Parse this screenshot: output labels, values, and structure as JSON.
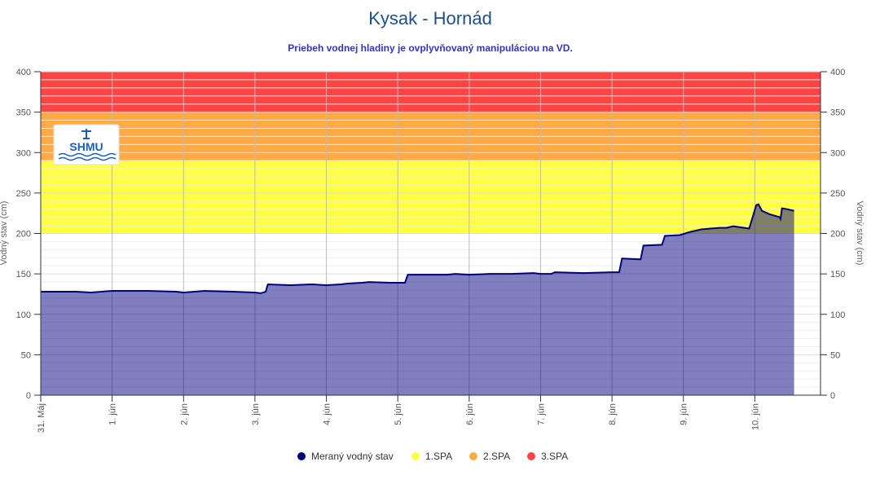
{
  "chart_data": {
    "type": "area",
    "title": "Kysak - Hornád",
    "subtitle": "Priebeh vodnej hladiny je ovplyvňovaný manipuláciou na VD.",
    "ylabel": "Vodný stav (cm)",
    "ylabel_right": "Vodný stav (cm)",
    "ylim": [
      0,
      400
    ],
    "yticks": [
      0,
      50,
      100,
      150,
      200,
      250,
      300,
      350,
      400
    ],
    "xlim_days": [
      0,
      10.92
    ],
    "xtick_labels": [
      "31. Máj",
      "1. jún",
      "2. jún",
      "3. jún",
      "4. jún",
      "5. jún",
      "6. jún",
      "7. jún",
      "8. jún",
      "9. jún",
      "10. jún"
    ],
    "bands": [
      {
        "name": "1.SPA",
        "from": 200,
        "to": 290,
        "color": "#ffff44"
      },
      {
        "name": "2.SPA",
        "from": 290,
        "to": 350,
        "color": "#ffaa44"
      },
      {
        "name": "3.SPA",
        "from": 350,
        "to": 400,
        "color": "#ff4444"
      }
    ],
    "series": [
      {
        "name": "Meraný vodný stav",
        "color": "#000080",
        "fill": "rgba(0,0,128,0.5)",
        "points_day_cm": [
          [
            0,
            128
          ],
          [
            0.5,
            128
          ],
          [
            0.7,
            127
          ],
          [
            1.0,
            129
          ],
          [
            1.5,
            129
          ],
          [
            1.9,
            128
          ],
          [
            2.0,
            127
          ],
          [
            2.3,
            129
          ],
          [
            2.7,
            128
          ],
          [
            3.0,
            127
          ],
          [
            3.08,
            126
          ],
          [
            3.15,
            128
          ],
          [
            3.18,
            137
          ],
          [
            3.5,
            136
          ],
          [
            3.8,
            137
          ],
          [
            4.0,
            136
          ],
          [
            4.2,
            137
          ],
          [
            4.3,
            138
          ],
          [
            4.5,
            139
          ],
          [
            4.6,
            140
          ],
          [
            4.9,
            139
          ],
          [
            5.1,
            139
          ],
          [
            5.14,
            149
          ],
          [
            5.4,
            149
          ],
          [
            5.7,
            149
          ],
          [
            5.8,
            150
          ],
          [
            6.0,
            149
          ],
          [
            6.3,
            150
          ],
          [
            6.6,
            150
          ],
          [
            6.9,
            151
          ],
          [
            7.0,
            150
          ],
          [
            7.15,
            150
          ],
          [
            7.2,
            152
          ],
          [
            7.6,
            151
          ],
          [
            8.0,
            152
          ],
          [
            8.1,
            152
          ],
          [
            8.14,
            169
          ],
          [
            8.4,
            168
          ],
          [
            8.44,
            185
          ],
          [
            8.7,
            186
          ],
          [
            8.74,
            197
          ],
          [
            8.95,
            198
          ],
          [
            9.1,
            202
          ],
          [
            9.25,
            205
          ],
          [
            9.5,
            207
          ],
          [
            9.6,
            207
          ],
          [
            9.7,
            209
          ],
          [
            9.85,
            207
          ],
          [
            9.92,
            206
          ],
          [
            9.97,
            220
          ],
          [
            10.02,
            235
          ],
          [
            10.05,
            236
          ],
          [
            10.1,
            228
          ],
          [
            10.2,
            224
          ],
          [
            10.35,
            220
          ],
          [
            10.36,
            218
          ],
          [
            10.38,
            231
          ],
          [
            10.45,
            230
          ],
          [
            10.5,
            229
          ],
          [
            10.55,
            228
          ]
        ]
      }
    ],
    "legend": [
      "Meraný vodný stav",
      "1.SPA",
      "2.SPA",
      "3.SPA"
    ],
    "legend_placement": "bottom-center",
    "grid": true
  },
  "logo_text": "SHMU"
}
